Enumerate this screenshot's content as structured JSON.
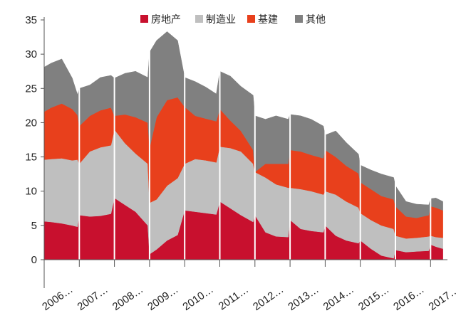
{
  "chart_data": {
    "type": "area",
    "stacked": true,
    "title": "",
    "xlabel": "",
    "ylabel": "",
    "ylim": [
      0,
      35
    ],
    "yticks": [
      0,
      5,
      10,
      15,
      20,
      25,
      30,
      35
    ],
    "x_tick_labels": [
      "2006…",
      "2007…",
      "2008…",
      "2009…",
      "2010…",
      "2011…",
      "2012…",
      "2013…",
      "2014…",
      "2015…",
      "2016…",
      "2017…"
    ],
    "legend_position": "top-right",
    "grid": false,
    "series": [
      {
        "name": "房地产",
        "color": "#c8102e",
        "points": [
          [
            0.0,
            5.6
          ],
          [
            0.2,
            5.5
          ],
          [
            0.5,
            5.3
          ],
          [
            0.8,
            5.0
          ],
          [
            0.95,
            4.8
          ],
          [
            1.0,
            6.5
          ],
          [
            1.3,
            6.3
          ],
          [
            1.6,
            6.4
          ],
          [
            1.9,
            6.7
          ],
          [
            2.0,
            9.0
          ],
          [
            2.3,
            8.0
          ],
          [
            2.6,
            7.0
          ],
          [
            2.95,
            5.0
          ],
          [
            3.0,
            0.8
          ],
          [
            3.2,
            1.5
          ],
          [
            3.5,
            2.8
          ],
          [
            3.8,
            3.6
          ],
          [
            4.0,
            7.2
          ],
          [
            4.3,
            7.0
          ],
          [
            4.6,
            6.8
          ],
          [
            4.9,
            6.6
          ],
          [
            5.0,
            8.5
          ],
          [
            5.3,
            7.5
          ],
          [
            5.6,
            6.5
          ],
          [
            5.95,
            5.5
          ],
          [
            6.0,
            6.5
          ],
          [
            6.3,
            4.0
          ],
          [
            6.6,
            3.4
          ],
          [
            6.95,
            3.3
          ],
          [
            7.0,
            5.8
          ],
          [
            7.3,
            4.5
          ],
          [
            7.6,
            4.2
          ],
          [
            7.95,
            4.0
          ],
          [
            8.0,
            5.0
          ],
          [
            8.3,
            3.5
          ],
          [
            8.6,
            2.8
          ],
          [
            8.95,
            2.4
          ],
          [
            9.0,
            2.8
          ],
          [
            9.3,
            1.6
          ],
          [
            9.6,
            0.6
          ],
          [
            9.95,
            0.2
          ],
          [
            10.0,
            1.4
          ],
          [
            10.3,
            1.1
          ],
          [
            10.6,
            1.2
          ],
          [
            10.95,
            1.3
          ],
          [
            11.0,
            2.2
          ],
          [
            11.15,
            1.9
          ],
          [
            11.35,
            1.6
          ]
        ]
      },
      {
        "name": "制造业",
        "color": "#bfbfbf",
        "points": [
          [
            0.0,
            9.0
          ],
          [
            0.2,
            9.2
          ],
          [
            0.5,
            9.5
          ],
          [
            0.8,
            9.5
          ],
          [
            0.95,
            9.8
          ],
          [
            1.0,
            7.5
          ],
          [
            1.3,
            9.5
          ],
          [
            1.6,
            10.0
          ],
          [
            1.9,
            10.0
          ],
          [
            2.0,
            10.0
          ],
          [
            2.3,
            9.0
          ],
          [
            2.6,
            8.5
          ],
          [
            2.95,
            9.0
          ],
          [
            3.0,
            7.5
          ],
          [
            3.2,
            7.3
          ],
          [
            3.5,
            8.0
          ],
          [
            3.8,
            8.3
          ],
          [
            4.0,
            6.8
          ],
          [
            4.3,
            7.7
          ],
          [
            4.6,
            7.7
          ],
          [
            4.9,
            7.6
          ],
          [
            5.0,
            8.0
          ],
          [
            5.3,
            8.8
          ],
          [
            5.6,
            9.3
          ],
          [
            5.95,
            8.5
          ],
          [
            6.0,
            6.3
          ],
          [
            6.3,
            8.0
          ],
          [
            6.6,
            7.6
          ],
          [
            6.95,
            7.2
          ],
          [
            7.0,
            4.7
          ],
          [
            7.3,
            5.8
          ],
          [
            7.6,
            5.8
          ],
          [
            7.95,
            5.5
          ],
          [
            8.0,
            5.0
          ],
          [
            8.3,
            6.0
          ],
          [
            8.6,
            5.7
          ],
          [
            8.95,
            5.2
          ],
          [
            9.0,
            4.0
          ],
          [
            9.3,
            4.2
          ],
          [
            9.6,
            4.4
          ],
          [
            9.95,
            4.3
          ],
          [
            10.0,
            2.1
          ],
          [
            10.3,
            2.0
          ],
          [
            10.6,
            2.0
          ],
          [
            10.95,
            2.1
          ],
          [
            11.0,
            1.3
          ],
          [
            11.15,
            1.4
          ],
          [
            11.35,
            1.6
          ]
        ]
      },
      {
        "name": "基建",
        "color": "#e8401c",
        "points": [
          [
            0.0,
            7.0
          ],
          [
            0.2,
            7.5
          ],
          [
            0.5,
            8.0
          ],
          [
            0.8,
            7.5
          ],
          [
            0.95,
            6.5
          ],
          [
            1.0,
            5.5
          ],
          [
            1.3,
            5.2
          ],
          [
            1.6,
            5.4
          ],
          [
            1.9,
            5.5
          ],
          [
            2.0,
            2.0
          ],
          [
            2.3,
            4.2
          ],
          [
            2.6,
            5.3
          ],
          [
            2.95,
            6.0
          ],
          [
            3.0,
            8.0
          ],
          [
            3.2,
            12.0
          ],
          [
            3.5,
            12.5
          ],
          [
            3.8,
            11.8
          ],
          [
            4.0,
            8.3
          ],
          [
            4.3,
            6.3
          ],
          [
            4.6,
            6.1
          ],
          [
            4.9,
            6.0
          ],
          [
            5.0,
            5.5
          ],
          [
            5.3,
            4.0
          ],
          [
            5.6,
            3.0
          ],
          [
            5.95,
            2.0
          ],
          [
            6.0,
            0.0
          ],
          [
            6.3,
            2.0
          ],
          [
            6.6,
            3.0
          ],
          [
            6.95,
            3.5
          ],
          [
            7.0,
            5.5
          ],
          [
            7.3,
            5.5
          ],
          [
            7.6,
            5.3
          ],
          [
            7.95,
            5.3
          ],
          [
            8.0,
            6.0
          ],
          [
            8.3,
            5.5
          ],
          [
            8.6,
            5.2
          ],
          [
            8.95,
            5.0
          ],
          [
            9.0,
            4.5
          ],
          [
            9.3,
            4.5
          ],
          [
            9.6,
            4.3
          ],
          [
            9.95,
            4.3
          ],
          [
            10.0,
            4.3
          ],
          [
            10.3,
            3.2
          ],
          [
            10.6,
            2.9
          ],
          [
            10.95,
            3.1
          ],
          [
            11.0,
            4.3
          ],
          [
            11.15,
            4.3
          ],
          [
            11.35,
            4.0
          ]
        ]
      },
      {
        "name": "其他",
        "color": "#808080",
        "points": [
          [
            0.0,
            6.5
          ],
          [
            0.2,
            6.5
          ],
          [
            0.5,
            6.5
          ],
          [
            0.8,
            4.5
          ],
          [
            0.95,
            3.0
          ],
          [
            1.0,
            5.5
          ],
          [
            1.3,
            4.5
          ],
          [
            1.6,
            4.8
          ],
          [
            1.9,
            4.7
          ],
          [
            2.0,
            5.5
          ],
          [
            2.3,
            6.0
          ],
          [
            2.6,
            6.7
          ],
          [
            2.95,
            6.6
          ],
          [
            3.0,
            14.0
          ],
          [
            3.2,
            11.2
          ],
          [
            3.5,
            10.0
          ],
          [
            3.8,
            8.3
          ],
          [
            4.0,
            4.3
          ],
          [
            4.3,
            5.0
          ],
          [
            4.6,
            4.6
          ],
          [
            4.9,
            4.0
          ],
          [
            5.0,
            5.5
          ],
          [
            5.3,
            6.5
          ],
          [
            5.6,
            6.5
          ],
          [
            5.95,
            8.0
          ],
          [
            6.0,
            8.2
          ],
          [
            6.3,
            6.5
          ],
          [
            6.6,
            7.0
          ],
          [
            6.95,
            6.5
          ],
          [
            7.0,
            5.2
          ],
          [
            7.3,
            5.2
          ],
          [
            7.6,
            5.2
          ],
          [
            7.95,
            4.7
          ],
          [
            8.0,
            2.2
          ],
          [
            8.3,
            3.8
          ],
          [
            8.6,
            3.4
          ],
          [
            8.95,
            2.8
          ],
          [
            9.0,
            2.5
          ],
          [
            9.3,
            2.8
          ],
          [
            9.6,
            3.2
          ],
          [
            9.95,
            3.2
          ],
          [
            10.0,
            3.0
          ],
          [
            10.3,
            2.2
          ],
          [
            10.6,
            2.0
          ],
          [
            10.95,
            1.5
          ],
          [
            11.0,
            1.1
          ],
          [
            11.15,
            1.4
          ],
          [
            11.35,
            1.3
          ]
        ]
      }
    ]
  }
}
